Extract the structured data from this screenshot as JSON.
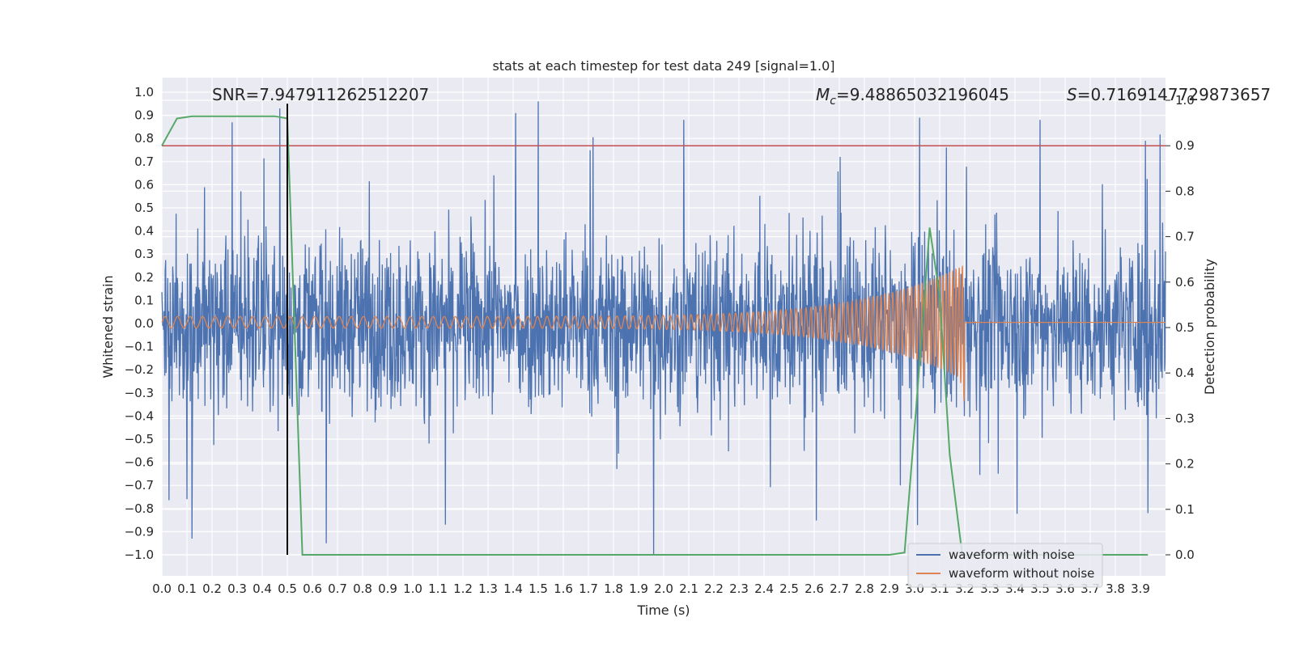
{
  "chart_data": {
    "type": "line",
    "title": "stats at each timestep for test data 249 [signal=1.0]",
    "xlabel": "Time (s)",
    "ylabel": "Whitened strain",
    "y2label": "Detection probability",
    "xlim": [
      0.0,
      4.0
    ],
    "ylim": [
      -1.1,
      1.05
    ],
    "y2lim": [
      -0.05,
      1.0
    ],
    "x_ticks": [
      "0.0",
      "0.1",
      "0.2",
      "0.3",
      "0.4",
      "0.5",
      "0.6",
      "0.7",
      "0.8",
      "0.9",
      "1.0",
      "1.1",
      "1.2",
      "1.3",
      "1.4",
      "1.5",
      "1.6",
      "1.7",
      "1.8",
      "1.9",
      "2.0",
      "2.1",
      "2.2",
      "2.3",
      "2.4",
      "2.5",
      "2.6",
      "2.7",
      "2.8",
      "2.9",
      "3.0",
      "3.1",
      "3.2",
      "3.3",
      "3.4",
      "3.5",
      "3.6",
      "3.7",
      "3.8",
      "3.9"
    ],
    "y_ticks": [
      "1.0",
      "0.9",
      "0.8",
      "0.7",
      "0.6",
      "0.5",
      "0.4",
      "0.3",
      "0.2",
      "0.1",
      "0.0",
      "−0.1",
      "−0.2",
      "−0.3",
      "−0.4",
      "−0.5",
      "−0.6",
      "−0.7",
      "−0.8",
      "−0.9",
      "−1.0"
    ],
    "y2_ticks": [
      "1.0",
      "0.9",
      "0.8",
      "0.7",
      "0.6",
      "0.5",
      "0.4",
      "0.3",
      "0.2",
      "0.1",
      "0.0"
    ],
    "grid": true,
    "legend_position": "lower-right",
    "annotations": {
      "snr": "SNR=7.947911262512207",
      "mc_symbol": "M",
      "mc_sub": "c",
      "mc_value": "=9.48865032196045",
      "s_symbol": "S",
      "s_value": "=0.7169147729873657"
    },
    "series": [
      {
        "name": "waveform with noise",
        "color": "#4c72b0",
        "axis": "left",
        "kind": "noise",
        "amplitude_envelope": 0.95,
        "spikes": [
          {
            "x": 0.28,
            "y": 0.87
          },
          {
            "x": 0.47,
            "y": 0.93
          },
          {
            "x": 1.41,
            "y": 0.91
          },
          {
            "x": 1.5,
            "y": 0.96
          },
          {
            "x": 2.08,
            "y": 0.88
          },
          {
            "x": 3.02,
            "y": 0.89
          },
          {
            "x": 3.5,
            "y": 0.88
          },
          {
            "x": 3.92,
            "y": 0.79
          },
          {
            "x": 0.12,
            "y": -0.93
          },
          {
            "x": 1.13,
            "y": -0.87
          },
          {
            "x": 1.96,
            "y": -1.0
          },
          {
            "x": 3.93,
            "y": -0.82
          }
        ]
      },
      {
        "name": "waveform without noise",
        "color": "#dd8452",
        "axis": "left",
        "kind": "chirp",
        "t_merge": 3.2,
        "start_amplitude": 0.025,
        "peak_amplitude": 0.25,
        "peak_negative": -0.36,
        "start_cycles_per_s": 20,
        "end_cycles_per_s": 80
      },
      {
        "name": "detection probability",
        "color": "#55a868",
        "axis": "right",
        "x": [
          0.0,
          0.06,
          0.12,
          0.2,
          0.3,
          0.4,
          0.45,
          0.5,
          0.56,
          0.7,
          1.0,
          1.5,
          2.0,
          2.5,
          2.9,
          2.96,
          3.01,
          3.06,
          3.1,
          3.14,
          3.19,
          3.25,
          3.5,
          3.93
        ],
        "y": [
          0.9,
          0.96,
          0.965,
          0.965,
          0.965,
          0.965,
          0.965,
          0.96,
          0.0,
          0.0,
          0.0,
          0.0,
          0.0,
          0.0,
          0.0,
          0.005,
          0.35,
          0.72,
          0.57,
          0.22,
          0.0,
          0.0,
          0.0,
          0.0
        ]
      }
    ],
    "threshold": {
      "axis": "right",
      "y": 0.9,
      "color": "#c44e52"
    },
    "marker_line": {
      "x": 0.5,
      "y_from": -1.0,
      "y_to": 0.95,
      "color": "#000000"
    },
    "legend": [
      {
        "label": "waveform with noise",
        "color": "#4c72b0"
      },
      {
        "label": "waveform without noise",
        "color": "#dd8452"
      }
    ]
  }
}
